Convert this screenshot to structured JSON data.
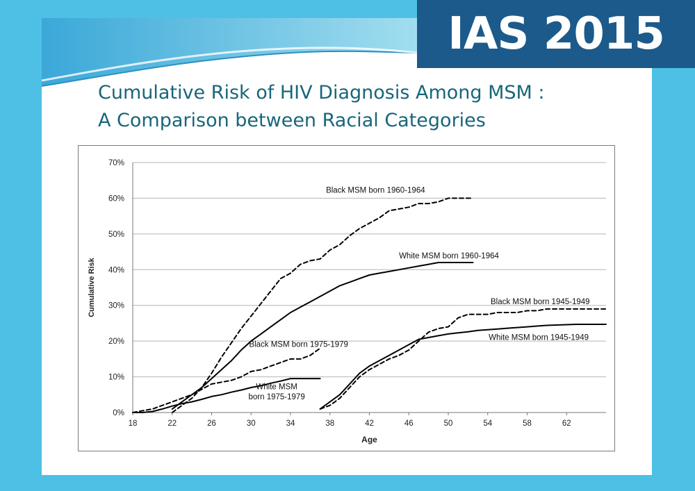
{
  "banner": {
    "text": "IAS 2015"
  },
  "slide": {
    "title_line1": "Cumulative Risk of HIV Diagnosis Among MSM :",
    "title_line2": "A Comparison between Racial Categories"
  },
  "colors": {
    "background": "#4ec0e6",
    "banner": "#1b5a8a",
    "title": "#17667a",
    "series": "#000000"
  },
  "chart_data": {
    "type": "line",
    "title": "",
    "xlabel": "Age",
    "ylabel": "Cumulative Risk",
    "xlim": [
      18,
      66
    ],
    "ylim": [
      0,
      70
    ],
    "x_ticks": [
      "18",
      "22",
      "26",
      "30",
      "34",
      "38",
      "42",
      "46",
      "50",
      "54",
      "58",
      "62"
    ],
    "y_ticks": [
      "0%",
      "10%",
      "20%",
      "30%",
      "40%",
      "50%",
      "60%",
      "70%"
    ],
    "grid": "horizontal",
    "series": [
      {
        "name": "Black MSM born 1960-1964",
        "style": "dashed",
        "x": [
          22,
          23,
          24,
          25,
          26,
          27,
          28,
          29,
          30,
          31,
          32,
          33,
          34,
          35,
          36,
          37,
          38,
          39,
          40,
          41,
          42,
          43,
          44,
          45,
          46,
          47,
          48,
          49,
          50,
          51,
          52.5
        ],
        "y": [
          0,
          2,
          4,
          7,
          11,
          15.5,
          19.5,
          23.5,
          27,
          30.5,
          34,
          37.5,
          39,
          41.5,
          42.5,
          43,
          45.5,
          47,
          49.5,
          51.5,
          53,
          54.5,
          56.5,
          57,
          57.5,
          58.5,
          58.5,
          59,
          60,
          60,
          60
        ]
      },
      {
        "name": "White MSM born 1960-1964",
        "style": "solid",
        "x": [
          22,
          23,
          24,
          25,
          26,
          27,
          28,
          29,
          30,
          31,
          32,
          33,
          34,
          35,
          36,
          37,
          38,
          39,
          40,
          41,
          42,
          43,
          44,
          45,
          46,
          47,
          48,
          49,
          50,
          51,
          52.5
        ],
        "y": [
          1,
          3,
          5,
          7,
          9.5,
          12,
          14.5,
          17.5,
          20,
          22,
          24,
          26,
          28,
          29.5,
          31,
          32.5,
          34,
          35.5,
          36.5,
          37.5,
          38.5,
          39,
          39.5,
          40,
          40.5,
          41,
          41.5,
          42,
          42,
          42,
          42
        ]
      },
      {
        "name": "Black MSM born 1945-1949",
        "style": "dashed",
        "x": [
          37,
          38,
          39,
          40,
          41,
          42,
          43,
          44,
          45,
          46,
          47,
          48,
          49,
          50,
          51,
          52,
          53,
          54,
          55,
          56,
          57,
          58,
          59,
          60,
          61,
          62,
          63,
          64,
          65,
          66
        ],
        "y": [
          1,
          2,
          4,
          7,
          10,
          12,
          13.5,
          15,
          16,
          17.5,
          20,
          22.5,
          23.5,
          24,
          26.5,
          27.5,
          27.5,
          27.5,
          28,
          28,
          28,
          28.5,
          28.5,
          29,
          29,
          29,
          29,
          29,
          29,
          29
        ]
      },
      {
        "name": "White MSM born 1945-1949",
        "style": "solid",
        "x": [
          37,
          38,
          39,
          40,
          41,
          42,
          43,
          44,
          45,
          46,
          47,
          48,
          49,
          50,
          51,
          52,
          53,
          54,
          55,
          56,
          57,
          58,
          59,
          60,
          61,
          62,
          63,
          64,
          65,
          66
        ],
        "y": [
          1,
          3,
          5,
          8,
          11,
          13,
          14.5,
          16,
          17.5,
          19,
          20.5,
          21,
          21.5,
          22,
          22.3,
          22.6,
          23,
          23.2,
          23.4,
          23.6,
          23.8,
          24,
          24.2,
          24.4,
          24.5,
          24.6,
          24.7,
          24.7,
          24.7,
          24.7
        ]
      },
      {
        "name": "Black MSM born 1975-1979",
        "style": "dashed",
        "x": [
          18,
          19,
          20,
          21,
          22,
          23,
          24,
          25,
          26,
          27,
          28,
          29,
          30,
          31,
          32,
          33,
          34,
          35,
          36,
          37
        ],
        "y": [
          0,
          0.5,
          1,
          2,
          3,
          4,
          5,
          6.5,
          8,
          8.5,
          9,
          10,
          11.5,
          12,
          13,
          14,
          15,
          15,
          16,
          18
        ]
      },
      {
        "name": "White MSM born 1975-1979",
        "style": "solid",
        "x": [
          18,
          19,
          20,
          21,
          22,
          23,
          24,
          25,
          26,
          27,
          28,
          29,
          30,
          31,
          32,
          33,
          34,
          35,
          36,
          37
        ],
        "y": [
          0,
          0,
          0.3,
          1,
          1.8,
          2.5,
          3,
          3.7,
          4.5,
          5,
          5.7,
          6.3,
          7,
          7.5,
          8.2,
          8.8,
          9.5,
          9.5,
          9.5,
          9.5
        ]
      }
    ],
    "annotations": [
      {
        "text": "Black MSM born 1960-1964",
        "x": 37.6,
        "y": 61.5,
        "anchor": "start"
      },
      {
        "text": "White MSM born 1960-1964",
        "x": 45,
        "y": 43.2,
        "anchor": "start"
      },
      {
        "text": "Black MSM born 1945-1949",
        "x": 54.3,
        "y": 30.3,
        "anchor": "start"
      },
      {
        "text": "White MSM born 1945-1949",
        "x": 54.1,
        "y": 20.3,
        "anchor": "start"
      },
      {
        "text": "Black MSM born 1975-1979",
        "x": 29.8,
        "y": 18.4,
        "anchor": "start"
      },
      {
        "text": "White MSM",
        "x": 32.6,
        "y": 6.5,
        "anchor": "middle"
      },
      {
        "text": "born 1975-1979",
        "x": 32.6,
        "y": 3.7,
        "anchor": "middle"
      }
    ]
  }
}
